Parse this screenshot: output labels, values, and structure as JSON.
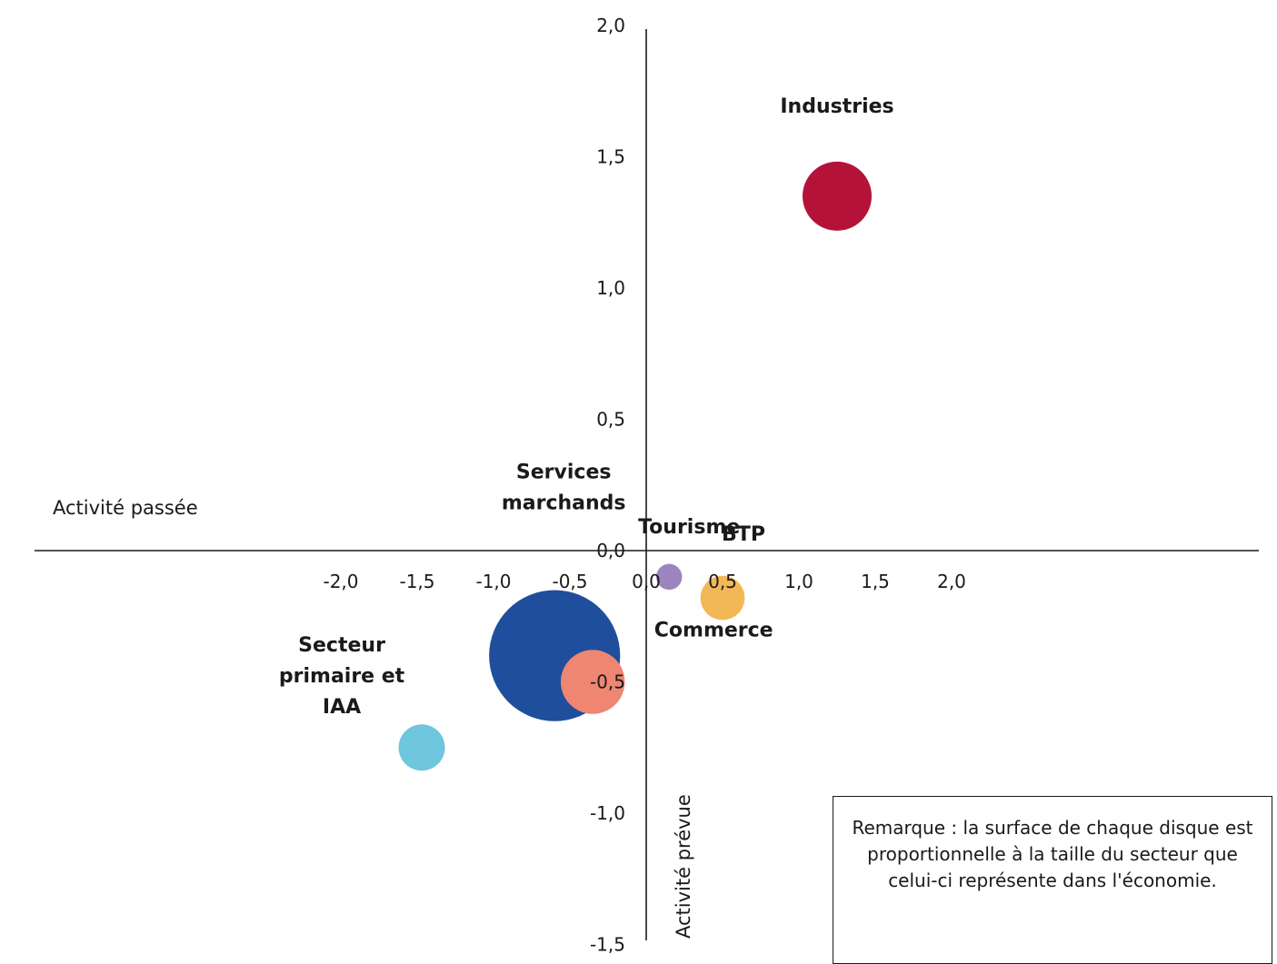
{
  "chart_data": {
    "type": "bubble",
    "x_axis": {
      "label": "Activité passée",
      "range": [
        -2.0,
        2.0
      ],
      "ticks": [
        "-2,0",
        "-1,5",
        "-1,0",
        "-0,5",
        "0,0",
        "0,5",
        "1,0",
        "1,5",
        "2,0"
      ]
    },
    "y_axis": {
      "label": "Activité prévue",
      "range": [
        -1.5,
        2.0
      ],
      "ticks": [
        "-1,5",
        "-1,0",
        "-0,5",
        "0,0",
        "0,5",
        "1,0",
        "1,5",
        "2,0"
      ]
    },
    "grid": false,
    "series": [
      {
        "name": "Industries",
        "label_lines": [
          "Industries"
        ],
        "x": 1.25,
        "y": 1.35,
        "size": 1.0,
        "color": "#b5123a"
      },
      {
        "name": "Services marchands",
        "label_lines": [
          "Services",
          "marchands"
        ],
        "x": -0.6,
        "y": -0.4,
        "size": 3.6,
        "color": "#1f4e9c"
      },
      {
        "name": "Commerce",
        "label_lines": [
          "Commerce"
        ],
        "x": -0.35,
        "y": -0.5,
        "size": 0.86,
        "color": "#ee8672"
      },
      {
        "name": "Secteur primaire et IAA",
        "label_lines": [
          "Secteur",
          "primaire et",
          "IAA"
        ],
        "x": -1.47,
        "y": -0.75,
        "size": 0.45,
        "color": "#6ec6df"
      },
      {
        "name": "BTP",
        "label_lines": [
          "BTP"
        ],
        "x": 0.5,
        "y": -0.18,
        "size": 0.41,
        "color": "#f2b857"
      },
      {
        "name": "Tourisme",
        "label_lines": [
          "Tourisme"
        ],
        "x": 0.15,
        "y": -0.1,
        "size": 0.14,
        "color": "#9c84bf"
      }
    ],
    "note": "Remarque  : la surface de chaque disque est proportionnelle à la taille du secteur que celui-ci représente dans l'économie."
  }
}
